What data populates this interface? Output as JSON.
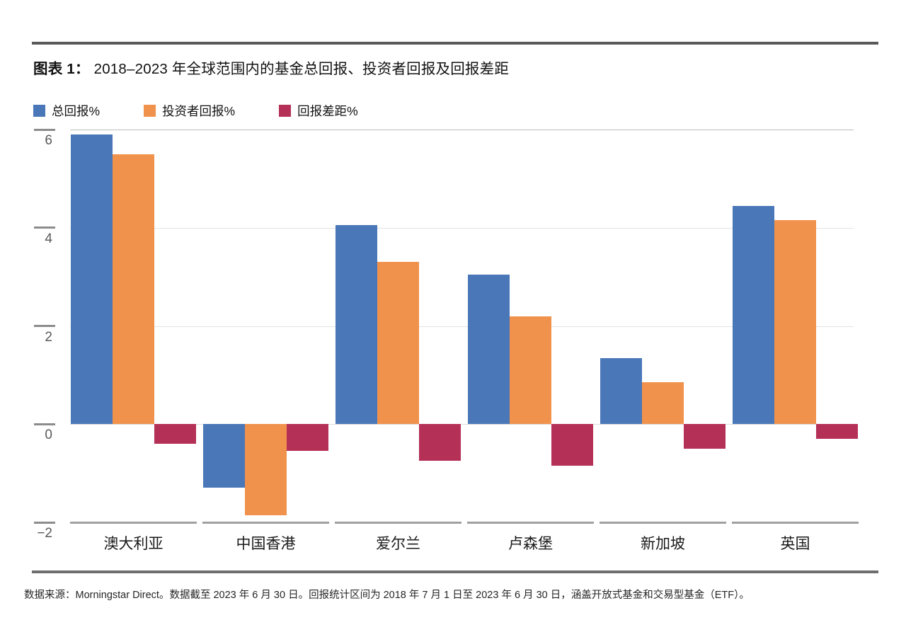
{
  "header": {
    "title_prefix": "图表 1：",
    "title_text": "2018–2023 年全球范围内的基金总回报、投资者回报及回报差距"
  },
  "chart_data": {
    "type": "bar",
    "title": "图表 1：2018–2023 年全球范围内的基金总回报、投资者回报及回报差距",
    "categories": [
      "澳大利亚",
      "中国香港",
      "爱尔兰",
      "卢森堡",
      "新加坡",
      "英国"
    ],
    "series": [
      {
        "name": "总回报%",
        "color": "#4a77b8",
        "values": [
          5.9,
          -1.3,
          4.05,
          3.05,
          1.35,
          4.45
        ]
      },
      {
        "name": "投资者回报%",
        "color": "#f0924c",
        "values": [
          5.5,
          -1.85,
          3.3,
          2.2,
          0.85,
          4.15
        ]
      },
      {
        "name": "回报差距%",
        "color": "#b53057",
        "values": [
          -0.4,
          -0.55,
          -0.75,
          -0.85,
          -0.5,
          -0.3
        ]
      }
    ],
    "ylim": [
      -2,
      6
    ],
    "yticks": [
      6,
      4,
      2,
      0,
      -2
    ],
    "ytick_labels": [
      "6",
      "4",
      "2",
      "0",
      "−2"
    ],
    "xlabel": "",
    "ylabel": "",
    "grid": true,
    "legend_position": "top-left",
    "colors": {
      "total_return": "#4a77b8",
      "investor_return": "#f0924c",
      "return_gap": "#b53057",
      "gridline": "#e3e3e3",
      "axis": "#8c8c8c"
    }
  },
  "footer": {
    "source": "数据来源：Morningstar Direct。数据截至 2023 年 6 月 30 日。回报统计区间为 2018 年 7 月 1 日至 2023 年 6 月 30 日，涵盖开放式基金和交易型基金（ETF）。"
  }
}
